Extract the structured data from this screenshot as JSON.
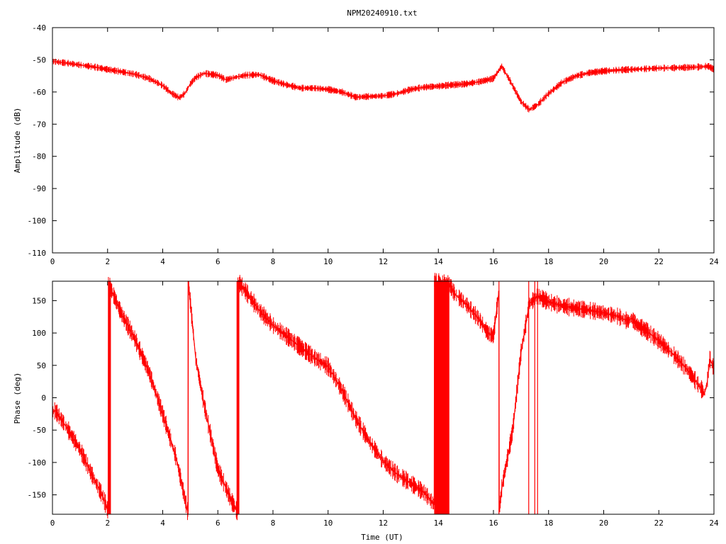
{
  "title": "NPM20240910.txt",
  "colors": {
    "trace": "#ff0000",
    "axes": "#000000",
    "background": "#ffffff"
  },
  "chart_data": [
    {
      "type": "line",
      "ylabel": "Amplitude (dB)",
      "xlabel": "",
      "xlim": [
        0,
        24
      ],
      "ylim": [
        -110,
        -40
      ],
      "xticks": [
        "0",
        "2",
        "4",
        "6",
        "8",
        "10",
        "12",
        "14",
        "16",
        "18",
        "20",
        "22",
        "24"
      ],
      "yticks": [
        "-40",
        "-50",
        "-60",
        "-70",
        "-80",
        "-90",
        "-100",
        "-110"
      ],
      "series": [
        {
          "x": [
            0,
            0.5,
            1,
            1.5,
            2,
            2.5,
            3,
            3.5,
            4,
            4.3,
            4.6,
            4.8,
            5,
            5.2,
            5.5,
            6,
            6.3,
            6.6,
            7,
            7.5,
            8,
            8.5,
            9,
            9.5,
            10,
            10.5,
            11,
            11.5,
            12,
            12.5,
            13,
            13.5,
            14,
            14.5,
            15,
            15.5,
            16,
            16.3,
            16.6,
            17,
            17.3,
            17.6,
            18,
            18.5,
            19,
            19.5,
            20,
            20.5,
            21,
            21.5,
            22,
            22.5,
            23,
            23.5,
            23.8,
            24
          ],
          "y": [
            -50.5,
            -51,
            -51.6,
            -52.2,
            -53,
            -53.7,
            -54.5,
            -55.8,
            -58,
            -60.3,
            -61.8,
            -60.5,
            -57.5,
            -55.5,
            -54.2,
            -54.8,
            -56.2,
            -55.5,
            -54.8,
            -54.6,
            -56.5,
            -57.8,
            -58.8,
            -58.8,
            -59.2,
            -60,
            -61.6,
            -61.4,
            -61.2,
            -60.5,
            -59.2,
            -58.5,
            -58.2,
            -57.8,
            -57.5,
            -56.8,
            -55.8,
            -52,
            -56.5,
            -63,
            -65.5,
            -64,
            -60.5,
            -57,
            -55,
            -54,
            -53.5,
            -53.2,
            -53,
            -52.8,
            -52.6,
            -52.5,
            -52.4,
            -52.2,
            -52,
            -53
          ]
        }
      ]
    },
    {
      "type": "line",
      "ylabel": "Phase (deg)",
      "xlabel": "Time (UT)",
      "xlim": [
        0,
        24
      ],
      "ylim": [
        -180,
        180
      ],
      "xticks": [
        "0",
        "2",
        "4",
        "6",
        "8",
        "10",
        "12",
        "14",
        "16",
        "18",
        "20",
        "22",
        "24"
      ],
      "yticks": [
        "150",
        "100",
        "50",
        "0",
        "-50",
        "-100",
        "-150"
      ],
      "series": [
        {
          "x": [
            0,
            0.1,
            0.5,
            1,
            1.5,
            1.8,
            2.02,
            2.03,
            2.1,
            2.5,
            3,
            3.5,
            4,
            4.5,
            4.9,
            4.92,
            4.93,
            5.2,
            5.5,
            6,
            6.5,
            6.7,
            6.72,
            6.73,
            7,
            7.5,
            8,
            8.5,
            9,
            9.5,
            10,
            10.5,
            11,
            11.5,
            12,
            12.5,
            13,
            13.5,
            13.85,
            13.86,
            14.4,
            14.6,
            15,
            15.5,
            15.8,
            16,
            16.2,
            16.21,
            16.3,
            16.7,
            17.0,
            17.3,
            17.6,
            18,
            18.5,
            19,
            19.5,
            20,
            20.5,
            20.9,
            21.0,
            21.2,
            21.5,
            22,
            22.5,
            23,
            23.3,
            23.6,
            23.65,
            23.75,
            23.85,
            24
          ],
          "y": [
            -22,
            -20,
            -45,
            -80,
            -125,
            -150,
            -175,
            180,
            170,
            130,
            90,
            40,
            -25,
            -95,
            -175,
            -175,
            180,
            60,
            -10,
            -110,
            -160,
            -175,
            -175,
            180,
            165,
            135,
            112,
            95,
            78,
            62,
            48,
            12,
            -32,
            -68,
            -98,
            -118,
            -132,
            -147,
            -165,
            180,
            175,
            160,
            145,
            120,
            100,
            95,
            165,
            -175,
            -140,
            -50,
            70,
            145,
            157,
            148,
            142,
            138,
            135,
            131,
            126,
            118,
            123,
            113,
            105,
            88,
            68,
            45,
            28,
            10,
            6,
            22,
            60,
            45
          ]
        }
      ]
    }
  ]
}
